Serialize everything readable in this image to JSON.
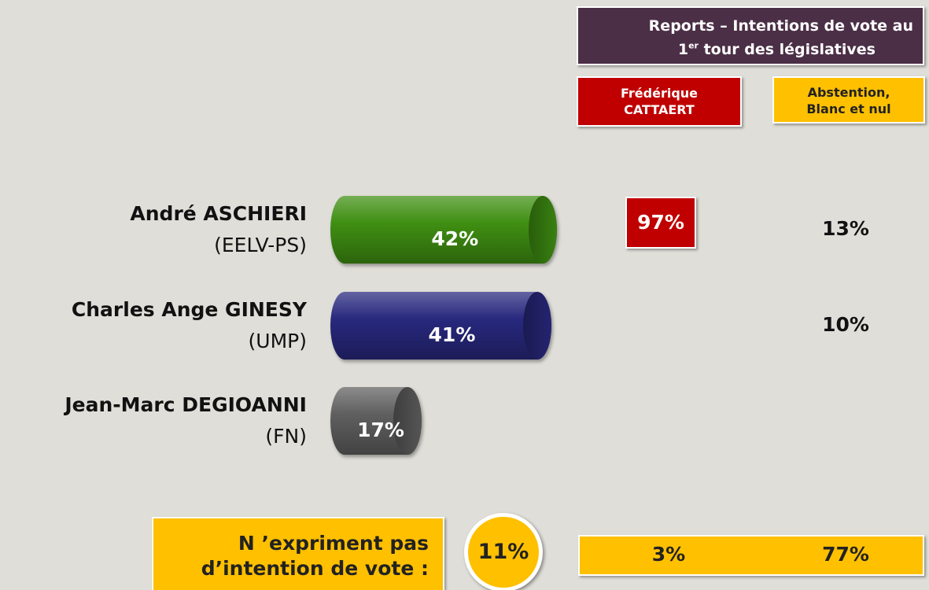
{
  "chart_data": {
    "type": "bar",
    "orientation": "horizontal",
    "categories": [
      "André ASCHIERI",
      "Charles Ange GINESY",
      "Jean-Marc DEGIOANNI"
    ],
    "category_parties": [
      "(EELV-PS)",
      "(UMP)",
      "(FN)"
    ],
    "values": [
      42,
      41,
      17
    ],
    "value_labels": [
      "42%",
      "41%",
      "17%"
    ],
    "colors": [
      "#3f8f12",
      "#28287e",
      "#5f5f5f"
    ]
  },
  "reports": {
    "title": [
      "Reports – Intentions de vote au",
      "1",
      "er",
      " tour des législatives"
    ],
    "columns": [
      {
        "name": "Frédérique\nCATTAERT",
        "color": "#c00000",
        "cells": [
          "97%"
        ]
      },
      {
        "name": "Abstention,\nBlanc et nul",
        "color": "#ffc000",
        "cells": [
          "13%",
          "10%"
        ]
      }
    ]
  },
  "no_intention": {
    "label": "N ’expriment pas\nd’intention de vote :",
    "value": "11%",
    "reports": [
      "3%",
      "77%"
    ]
  }
}
